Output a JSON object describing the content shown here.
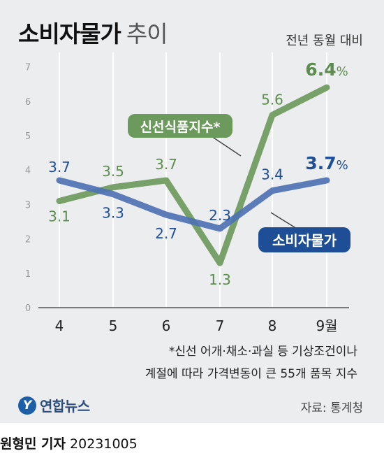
{
  "header": {
    "title_bold": "소비자물가",
    "title_light": "추이",
    "unit": "전년 동월 대비"
  },
  "chart_data": {
    "type": "line",
    "categories": [
      "4",
      "5",
      "6",
      "7",
      "8",
      "9월"
    ],
    "ylim": [
      0,
      7
    ],
    "yticks": [
      "0",
      "1",
      "2",
      "3",
      "4",
      "5",
      "6",
      "7"
    ],
    "grid": false,
    "series": [
      {
        "name": "소비자물가",
        "values": [
          3.7,
          3.3,
          2.7,
          2.3,
          3.4,
          3.7
        ],
        "labels": [
          "3.7",
          "3.3",
          "2.7",
          "2.3",
          "3.4",
          "3.7"
        ],
        "last_suffix": "%",
        "color": "#4e72b4"
      },
      {
        "name": "신선식품지수*",
        "values": [
          3.1,
          3.5,
          3.7,
          1.3,
          5.6,
          6.4
        ],
        "labels": [
          "3.1",
          "3.5",
          "3.7",
          "1.3",
          "5.6",
          "6.4"
        ],
        "last_suffix": "%",
        "color": "#6c9a5c"
      }
    ]
  },
  "footnote": {
    "line1": "*신선 어개·채소·과실 등 기상조건이나",
    "line2": "계절에 따라 가격변동이 큰 55개 품목 지수"
  },
  "logo": {
    "mark": "Y",
    "text": "연합뉴스"
  },
  "source": "자료: 통계청",
  "credit": {
    "name": "원형민 기자",
    "date": "20231005"
  },
  "colors": {
    "cpi_label": "#1e4f96",
    "fresh_label": "#5b8e4d",
    "cpi_tag_bg": "#1e4f96",
    "fresh_tag_bg": "#6c9a5c",
    "background": "#ecedef"
  }
}
